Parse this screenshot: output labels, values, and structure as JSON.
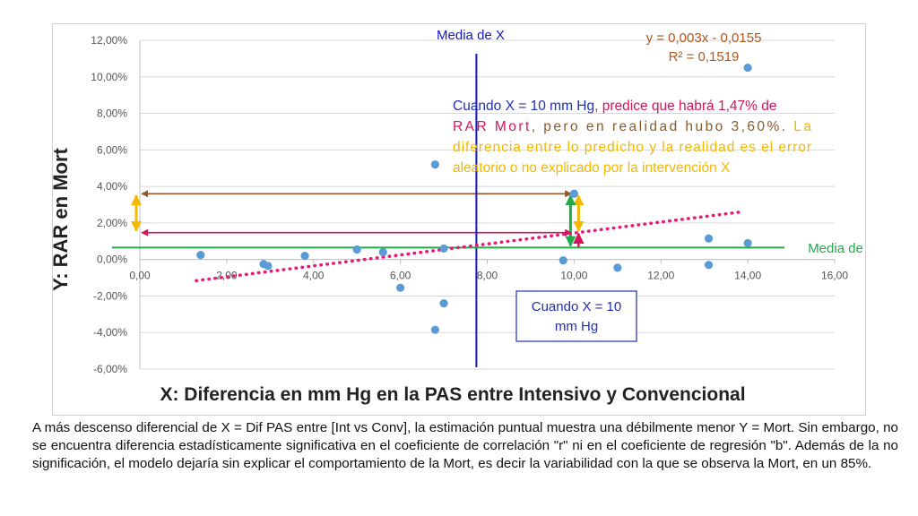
{
  "chart_data": {
    "type": "scatter",
    "xlabel": "X: Diferencia en mm Hg en la PAS entre Intensivo y Convencional",
    "ylabel": "Y: RAR en Mort",
    "xlim": [
      0,
      16
    ],
    "ylim": [
      -6,
      12
    ],
    "x_ticks": [
      "0,00",
      "2,00",
      "4,00",
      "6,00",
      "8,00",
      "10,00",
      "12,00",
      "14,00",
      "16,00"
    ],
    "y_ticks": [
      "12,00%",
      "10,00%",
      "8,00%",
      "6,00%",
      "4,00%",
      "2,00%",
      "0,00%",
      "-2,00%",
      "-4,00%",
      "-6,00%"
    ],
    "grid": "horizontal",
    "points": [
      {
        "x": 1.4,
        "y": 0.25
      },
      {
        "x": 2.85,
        "y": -0.25
      },
      {
        "x": 2.95,
        "y": -0.35
      },
      {
        "x": 3.8,
        "y": 0.2
      },
      {
        "x": 5.0,
        "y": 0.55
      },
      {
        "x": 5.6,
        "y": 0.4
      },
      {
        "x": 6.0,
        "y": -1.55
      },
      {
        "x": 6.8,
        "y": 5.2
      },
      {
        "x": 6.8,
        "y": -3.85
      },
      {
        "x": 7.0,
        "y": 0.6
      },
      {
        "x": 7.0,
        "y": -2.4
      },
      {
        "x": 9.75,
        "y": -0.05
      },
      {
        "x": 10.0,
        "y": 3.6
      },
      {
        "x": 11.0,
        "y": -0.45
      },
      {
        "x": 13.1,
        "y": 1.15
      },
      {
        "x": 13.1,
        "y": -0.3
      },
      {
        "x": 14.0,
        "y": 10.5
      },
      {
        "x": 14.0,
        "y": 0.9
      }
    ],
    "trendline": {
      "equation": "y = 0,003x - 0,0155",
      "r2": "R² = 0,1519",
      "x_range": [
        1.3,
        13.9
      ],
      "slope": 0.3,
      "intercept": -1.55,
      "color": "#e61a74"
    },
    "mean_x": {
      "value": 7.75,
      "label": "Media de X",
      "color": "#1515c8"
    },
    "mean_y": {
      "value": 0.65,
      "label": "Media de Y",
      "color": "#22aa4a"
    },
    "annotation_line1": [
      {
        "text": "Cuando X = 10 mm Hg",
        "color": "#1f2fb8"
      },
      {
        "text": ", predice que habrá 1,47% de",
        "color": "#d4145a"
      }
    ],
    "annotation_line2": [
      {
        "text": "RAR Mort",
        "color": "#d4145a"
      },
      {
        "text": ", pero en realidad hubo 3,60%. ",
        "color": "#8a5a2b"
      },
      {
        "text": "La",
        "color": "#f3b800"
      }
    ],
    "annotation_line3": "diferencia entre lo predicho y la realidad es el error",
    "annotation_line4": "aleatorio o no explicado por la intervención X",
    "annotation_error_color": "#f3b800",
    "box_label_lines": [
      "Cuando X = 10",
      "mm Hg"
    ],
    "predicted_value": 1.47,
    "actual_value": 3.6,
    "point_color": "#5b9bd5",
    "arrow_colors": {
      "actual": "#8a5a2b",
      "predicted": "#d4145a",
      "error": "#f3b800",
      "mean_diff": "#22aa4a"
    }
  },
  "caption": "A más descenso diferencial de X = Dif PAS entre [Int vs Conv], la estimación puntual muestra una débilmente menor Y = Mort. Sin embargo, no se encuentra diferencia estadísticamente significativa en el coeficiente de correlación \"r\" ni en el coeficiente de regresión \"b\". Además de la no significación, el modelo dejaría sin explicar el comportamiento de la Mort, es decir la variabilidad con la que se observa la Mort, en un 85%."
}
